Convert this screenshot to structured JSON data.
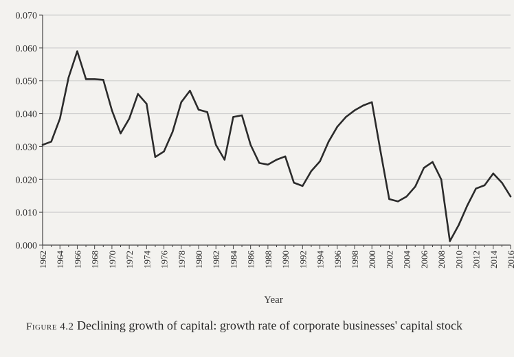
{
  "chart_data": {
    "type": "line",
    "title": "",
    "xlabel": "Year",
    "ylabel": "",
    "ylim": [
      0,
      0.07
    ],
    "yticks": [
      "0.000",
      "0.010",
      "0.020",
      "0.030",
      "0.040",
      "0.050",
      "0.060",
      "0.070"
    ],
    "ytick_values": [
      0,
      0.01,
      0.02,
      0.03,
      0.04,
      0.05,
      0.06,
      0.07
    ],
    "xlim": [
      1962,
      2016
    ],
    "xticks": [
      "1962",
      "1964",
      "1966",
      "1968",
      "1970",
      "1972",
      "1974",
      "1976",
      "1978",
      "1980",
      "1982",
      "1984",
      "1986",
      "1988",
      "1990",
      "1992",
      "1994",
      "1996",
      "1998",
      "2000",
      "2002",
      "2004",
      "2006",
      "2008",
      "2010",
      "2012",
      "2014",
      "2016"
    ],
    "series": [
      {
        "name": "Growth rate of corporate businesses' capital stock",
        "x": [
          1962,
          1963,
          1964,
          1965,
          1966,
          1967,
          1968,
          1969,
          1970,
          1971,
          1972,
          1973,
          1974,
          1975,
          1976,
          1977,
          1978,
          1979,
          1980,
          1981,
          1982,
          1983,
          1984,
          1985,
          1986,
          1987,
          1988,
          1989,
          1990,
          1991,
          1992,
          1993,
          1994,
          1995,
          1996,
          1997,
          1998,
          1999,
          2000,
          2001,
          2002,
          2003,
          2004,
          2005,
          2006,
          2007,
          2008,
          2009,
          2010,
          2011,
          2012,
          2013,
          2014,
          2015,
          2016
        ],
        "values": [
          0.0305,
          0.0315,
          0.0385,
          0.051,
          0.059,
          0.0505,
          0.0505,
          0.0503,
          0.041,
          0.034,
          0.0385,
          0.046,
          0.043,
          0.0268,
          0.0285,
          0.0345,
          0.0435,
          0.047,
          0.0412,
          0.0405,
          0.0305,
          0.026,
          0.039,
          0.0395,
          0.0305,
          0.025,
          0.0245,
          0.026,
          0.027,
          0.019,
          0.018,
          0.0225,
          0.0255,
          0.0315,
          0.036,
          0.039,
          0.041,
          0.0425,
          0.0435,
          0.0285,
          0.014,
          0.0133,
          0.0148,
          0.0178,
          0.0235,
          0.0253,
          0.02,
          0.0012,
          0.006,
          0.012,
          0.0172,
          0.0182,
          0.0218,
          0.019,
          0.0148
        ]
      }
    ]
  },
  "caption": {
    "label": "Figure 4.2",
    "text": "Declining growth of capital: growth rate of corporate businesses' capital stock"
  },
  "colors": {
    "line": "#2b2b2b",
    "grid": "#c9c9c9",
    "axis": "#444444"
  }
}
